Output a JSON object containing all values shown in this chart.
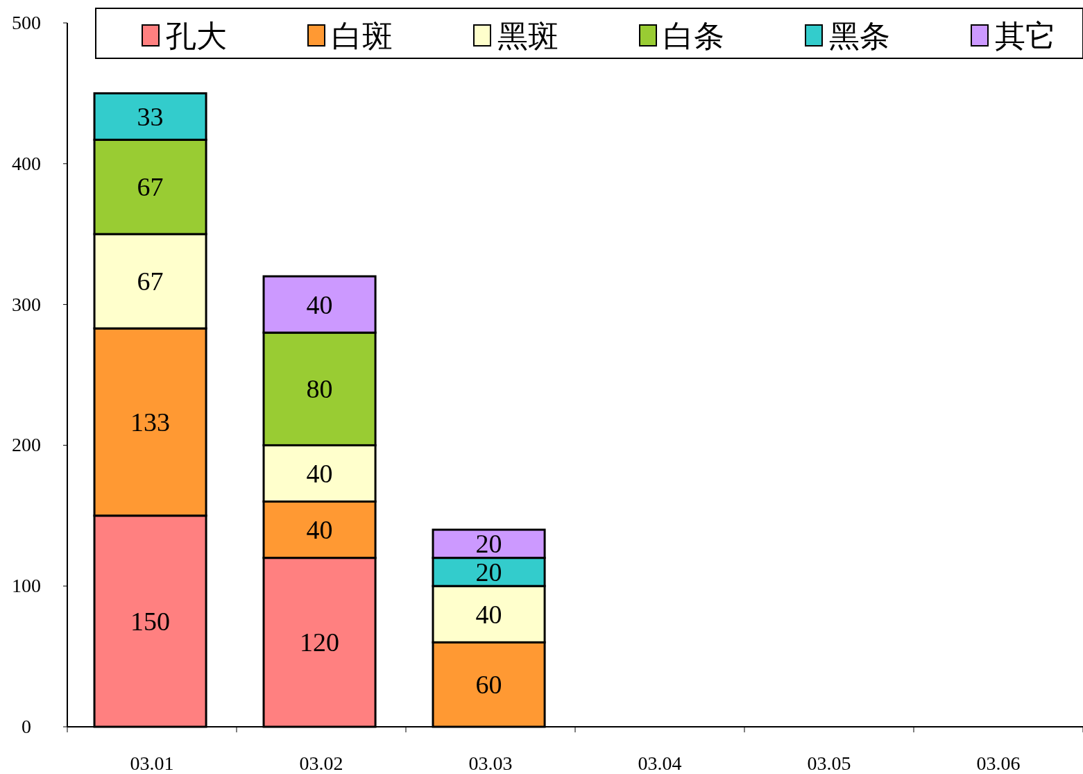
{
  "chart_data": {
    "type": "bar",
    "stacked": true,
    "categories": [
      "03.01",
      "03.02",
      "03.03",
      "03.04",
      "03.05",
      "03.06"
    ],
    "series": [
      {
        "name": "孔大",
        "color": "#ff8080",
        "values": [
          150,
          120,
          0,
          null,
          null,
          null
        ],
        "value_labels": [
          "150",
          "120",
          null,
          null,
          null,
          null
        ]
      },
      {
        "name": "白斑",
        "color": "#ff9933",
        "values": [
          133,
          40,
          60,
          null,
          null,
          null
        ],
        "value_labels": [
          "133",
          "40",
          "60",
          null,
          null,
          null
        ]
      },
      {
        "name": "黑斑",
        "color": "#ffffcc",
        "values": [
          67,
          40,
          40,
          null,
          null,
          null
        ],
        "value_labels": [
          "67",
          "40",
          "40",
          null,
          null,
          null
        ]
      },
      {
        "name": "白条",
        "color": "#99cc33",
        "values": [
          67,
          80,
          0,
          null,
          null,
          null
        ],
        "value_labels": [
          "67",
          "80",
          null,
          null,
          null,
          null
        ]
      },
      {
        "name": "黑条",
        "color": "#33cccc",
        "values": [
          33,
          0,
          20,
          null,
          null,
          null
        ],
        "value_labels": [
          "33",
          null,
          "20",
          null,
          null,
          null
        ]
      },
      {
        "name": "其它",
        "color": "#cc99ff",
        "values": [
          0,
          40,
          20,
          null,
          null,
          null
        ],
        "value_labels": [
          null,
          "40",
          "20",
          null,
          null,
          null
        ]
      }
    ],
    "ylim": [
      0,
      500
    ],
    "yticks": [
      0,
      100,
      200,
      300,
      400,
      500
    ],
    "grid": false,
    "legend": "top"
  }
}
